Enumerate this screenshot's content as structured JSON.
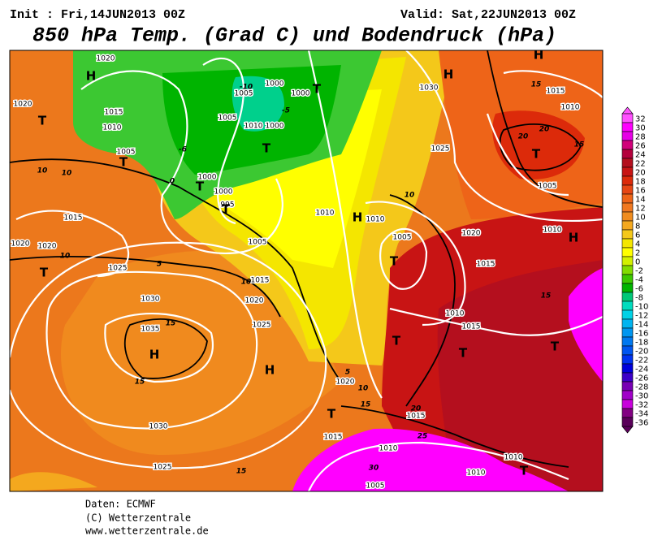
{
  "header": {
    "init": "Init : Fri,14JUN2013 00Z",
    "valid": "Valid: Sat,22JUN2013 00Z",
    "title": "850 hPa Temp. (Grad C) und Bodendruck (hPa)"
  },
  "footer": [
    "Daten: ECMWF",
    "(C) Wetterzentrale",
    "www.wetterzentrale.de"
  ],
  "color_scale": {
    "labels": [
      32,
      30,
      28,
      26,
      24,
      22,
      20,
      18,
      16,
      14,
      12,
      10,
      8,
      6,
      4,
      2,
      0,
      -2,
      -4,
      -6,
      -8,
      -10,
      -12,
      -14,
      -16,
      -18,
      -20,
      -22,
      -24,
      -26,
      -28,
      -30,
      -32,
      -34,
      -36
    ],
    "colors": [
      "#ff50ff",
      "#ff00ff",
      "#e600e6",
      "#d0007a",
      "#b4003c",
      "#b40f1e",
      "#c81414",
      "#dc2a0a",
      "#e64614",
      "#ee6418",
      "#f07820",
      "#f08c1e",
      "#f4a81e",
      "#f4c81a",
      "#f4e600",
      "#ffff00",
      "#d2f000",
      "#82dc00",
      "#3cc800",
      "#00b400",
      "#00c878",
      "#00dcbe",
      "#00d2e6",
      "#00b4f0",
      "#0096f0",
      "#0078f0",
      "#0055f0",
      "#0032f0",
      "#0000dc",
      "#3c00c8",
      "#7800b4",
      "#a000c8",
      "#c800dc",
      "#820082",
      "#5a005a"
    ]
  },
  "map": {
    "pressure_labels": [
      "1020",
      "1020",
      "1015",
      "1010",
      "1005",
      "1005",
      "1010",
      "1000",
      "1000",
      "1005",
      "1000",
      "1000",
      "1000",
      "995",
      "1010",
      "1015",
      "1020",
      "1020",
      "1005",
      "1025",
      "1015",
      "1020",
      "1030",
      "1025",
      "1035",
      "1030",
      "1025",
      "1020",
      "1015",
      "1010",
      "1005",
      "1015",
      "1010",
      "1005",
      "1010",
      "1015",
      "1015",
      "1020",
      "1010",
      "1010",
      "1015",
      "1005",
      "1030",
      "1025",
      "1010",
      "1010"
    ],
    "markers": [
      "H",
      "H",
      "H",
      "T",
      "T",
      "T",
      "T",
      "T",
      "T",
      "H",
      "T",
      "T",
      "H",
      "H",
      "T",
      "T",
      "T",
      "T",
      "T",
      "T",
      "H"
    ],
    "temperature_labels": [
      "-6",
      "-5",
      "-10",
      "0",
      "10",
      "10",
      "10",
      "15",
      "15",
      "20",
      "20",
      "15",
      "15",
      "5",
      "10",
      "5",
      "10",
      "15",
      "20",
      "25",
      "30",
      "15",
      "15",
      "10"
    ]
  }
}
